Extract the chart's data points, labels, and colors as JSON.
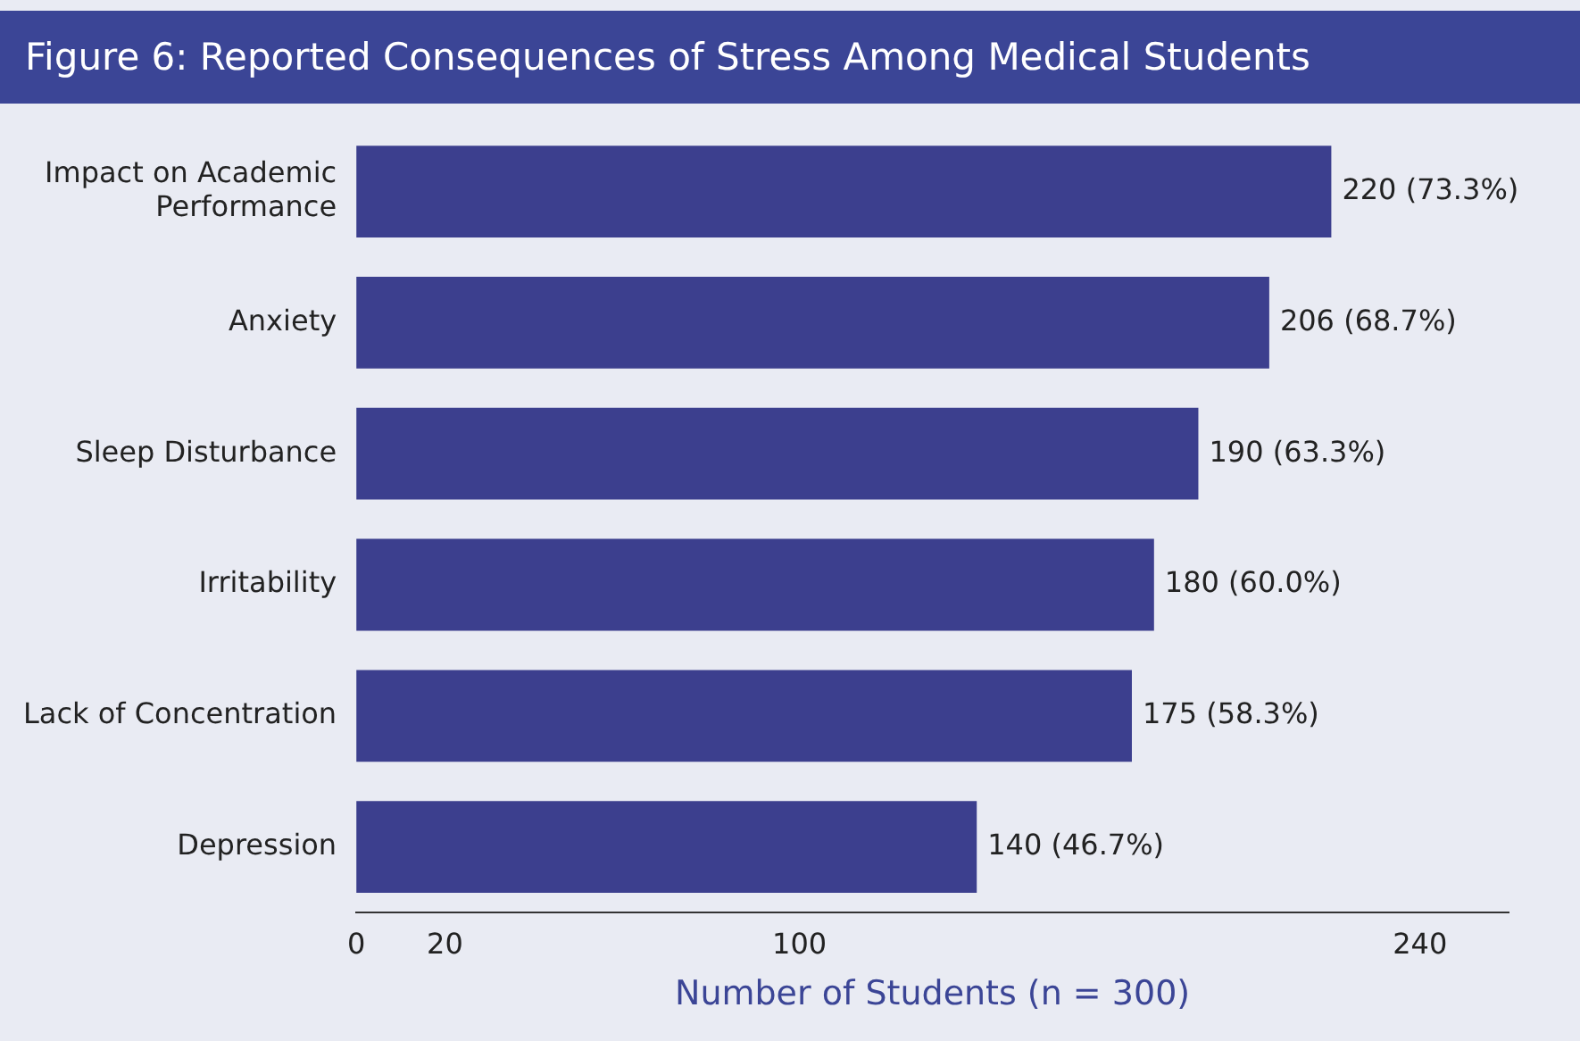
{
  "chart_data": {
    "type": "bar",
    "orientation": "horizontal",
    "title": "Figure 6: Reported Consequences of Stress Among Medical Students",
    "xlabel": "Number of Students (n = 300)",
    "categories": [
      "Impact on Academic Performance",
      "Anxiety",
      "Sleep Disturbance",
      "Irritability",
      "Lack of Concentration",
      "Depression"
    ],
    "values": [
      220,
      206,
      190,
      180,
      175,
      140
    ],
    "value_labels": [
      "220 (73.3%)",
      "206 (68.7%)",
      "190 (63.3%)",
      "180 (60.0%)",
      "175 (58.3%)",
      "140 (46.7%)"
    ],
    "color": "#3c3f8e",
    "xlim": [
      0,
      260
    ],
    "xticks": [
      0,
      20,
      100,
      240
    ],
    "grid": false,
    "legend": false
  }
}
